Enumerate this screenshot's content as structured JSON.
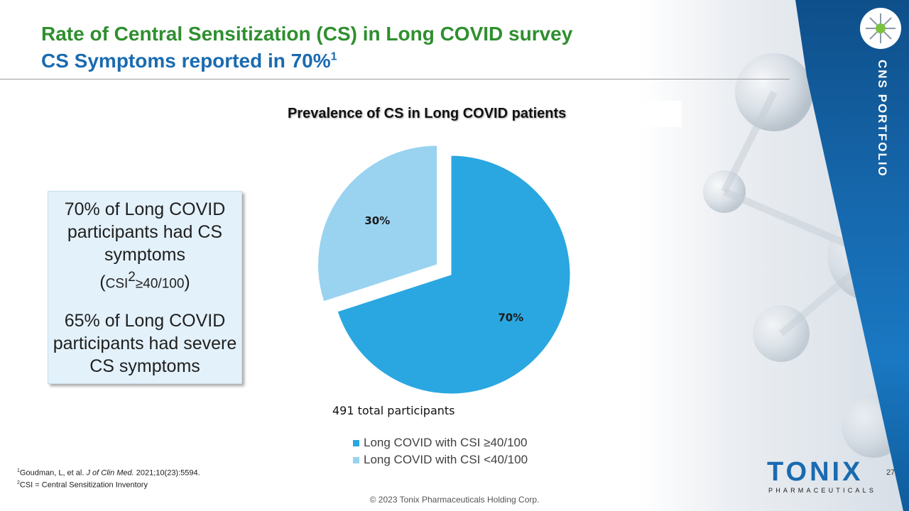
{
  "header": {
    "title_line1": "Rate of Central Sensitization (CS) in Long COVID survey",
    "title_line2": "CS Symptoms  reported in 70%",
    "title_line2_sup": "1"
  },
  "side_label": "CNS PORTFOLIO",
  "callout": {
    "line1": "70% of Long COVID participants had CS symptoms",
    "csi_open": "(",
    "csi_text": "CSI",
    "csi_sup": "2",
    "csi_rest": "≥40/100",
    "csi_close": ")",
    "line2": "65% of Long COVID participants had severe CS symptoms"
  },
  "chart_data": {
    "type": "pie",
    "title": "Prevalence of CS in Long COVID patients",
    "categories": [
      "Long COVID with CSI ≥40/100",
      "Long COVID with CSI <40/100"
    ],
    "values": [
      70,
      30
    ],
    "labels": [
      "70%",
      "30%"
    ],
    "colors": [
      "#2aa7e0",
      "#99d3f0"
    ],
    "exploded": [
      false,
      true
    ],
    "note": "491 total participants",
    "legend_position": "bottom"
  },
  "footnotes": {
    "ref1_sup": "1",
    "ref1_text_a": "Goudman, L, et al. ",
    "ref1_journal": "J of Clin Med.",
    "ref1_text_b": " 2021;10(23):5594.",
    "ref2_sup": "2",
    "ref2_text": "CSI = Central Sensitization Inventory"
  },
  "copyright": "© 2023 Tonix Pharmaceuticals Holding Corp.",
  "logo": {
    "name": "TONIX",
    "tagline": "PHARMACEUTICALS"
  },
  "page_number": "27"
}
